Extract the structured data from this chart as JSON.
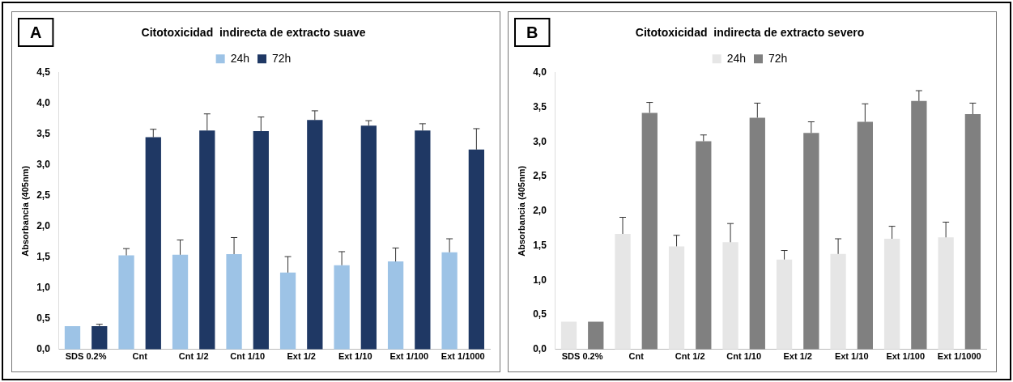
{
  "chart_data": [
    {
      "type": "bar",
      "title": "Citotoxicidad  indirecta de extracto suave",
      "ylabel": "Absorbancia (405nm)",
      "annotations": [
        "A"
      ],
      "categories": [
        "SDS 0.2%",
        "Cnt",
        "Cnt 1/2",
        "Cnt 1/10",
        "Ext 1/2",
        "Ext 1/10",
        "Ext 1/100",
        "Ext 1/1000"
      ],
      "series": [
        {
          "name": "24h",
          "color": "#9dc3e6",
          "values": [
            0.38,
            1.53,
            1.54,
            1.55,
            1.25,
            1.37,
            1.43,
            1.58
          ],
          "errors": [
            null,
            [
              1.53,
              1.64
            ],
            [
              1.54,
              1.78
            ],
            [
              1.55,
              1.82
            ],
            [
              1.25,
              1.51
            ],
            [
              1.37,
              1.59
            ],
            [
              1.43,
              1.65
            ],
            [
              1.58,
              1.8
            ]
          ]
        },
        {
          "name": "72h",
          "color": "#1f3864",
          "values": [
            0.38,
            3.45,
            3.56,
            3.55,
            3.73,
            3.64,
            3.56,
            3.25
          ],
          "errors": [
            [
              0.38,
              0.41
            ],
            [
              3.45,
              3.58
            ],
            [
              3.56,
              3.83
            ],
            [
              3.55,
              3.78
            ],
            [
              3.73,
              3.88
            ],
            [
              3.64,
              3.72
            ],
            [
              3.56,
              3.67
            ],
            [
              3.25,
              3.59
            ]
          ]
        }
      ],
      "ylim": [
        0,
        4.5
      ],
      "yticks": [
        {
          "value": 0,
          "label": "0,0"
        },
        {
          "value": 0.5,
          "label": "0,5"
        },
        {
          "value": 1,
          "label": "1,0"
        },
        {
          "value": 1.5,
          "label": "1,5"
        },
        {
          "value": 2,
          "label": "2,0"
        },
        {
          "value": 2.5,
          "label": "2,5"
        },
        {
          "value": 3,
          "label": "3,0"
        },
        {
          "value": 3.5,
          "label": "3,5"
        },
        {
          "value": 4,
          "label": "4,0"
        },
        {
          "value": 4.5,
          "label": "4,5"
        }
      ],
      "grid": false,
      "legend": "top"
    },
    {
      "type": "bar",
      "title": "Citotoxicidad  indirecta de extracto severo",
      "ylabel": "Absorbancia (405nm)",
      "annotations": [
        "B"
      ],
      "categories": [
        "SDS 0.2%",
        "Cnt",
        "Cnt 1/2",
        "Cnt 1/10",
        "Ext 1/2",
        "Ext 1/10",
        "Ext 1/100",
        "Ext 1/1000"
      ],
      "series": [
        {
          "name": "24h",
          "color": "#e6e6e6",
          "values": [
            0.4,
            1.67,
            1.49,
            1.55,
            1.3,
            1.38,
            1.6,
            1.62
          ],
          "errors": [
            null,
            [
              1.67,
              1.91
            ],
            [
              1.49,
              1.65
            ],
            [
              1.55,
              1.82
            ],
            [
              1.3,
              1.43
            ],
            [
              1.38,
              1.6
            ],
            [
              1.6,
              1.78
            ],
            [
              1.62,
              1.84
            ]
          ]
        },
        {
          "name": "72h",
          "color": "#808080",
          "values": [
            0.4,
            3.42,
            3.01,
            3.35,
            3.13,
            3.29,
            3.59,
            3.4
          ],
          "errors": [
            null,
            [
              3.42,
              3.57
            ],
            [
              3.01,
              3.1
            ],
            [
              3.35,
              3.56
            ],
            [
              3.13,
              3.29
            ],
            [
              3.29,
              3.55
            ],
            [
              3.59,
              3.74
            ],
            [
              3.4,
              3.56
            ]
          ]
        }
      ],
      "ylim": [
        0,
        4.0
      ],
      "yticks": [
        {
          "value": 0,
          "label": "0,0"
        },
        {
          "value": 0.5,
          "label": "0,5"
        },
        {
          "value": 1,
          "label": "1,0"
        },
        {
          "value": 1.5,
          "label": "1,5"
        },
        {
          "value": 2,
          "label": "2,0"
        },
        {
          "value": 2.5,
          "label": "2,5"
        },
        {
          "value": 3,
          "label": "3,0"
        },
        {
          "value": 3.5,
          "label": "3,5"
        },
        {
          "value": 4,
          "label": "4,0"
        }
      ],
      "grid": false,
      "legend": "top"
    }
  ]
}
